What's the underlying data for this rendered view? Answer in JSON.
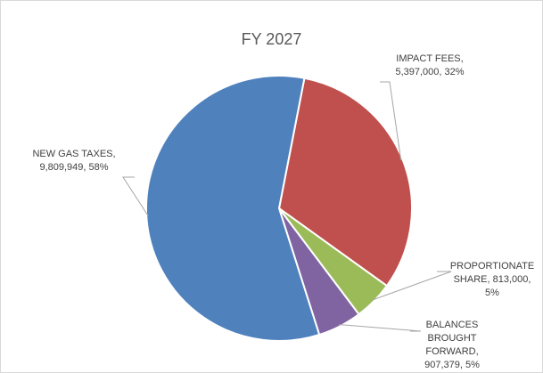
{
  "chart_data": {
    "type": "pie",
    "title": "FY 2027",
    "slices": [
      {
        "name": "IMPACT FEES",
        "value": 5397000,
        "percent": 32,
        "color": "#c0504d",
        "label_lines": [
          "IMPACT FEES,",
          "5,397,000, 32%"
        ]
      },
      {
        "name": "PROPORTIONATE SHARE",
        "value": 813000,
        "percent": 5,
        "color": "#9bbb59",
        "label_lines": [
          "PROPORTIONATE",
          "SHARE, 813,000,",
          "5%"
        ]
      },
      {
        "name": "BALANCES BROUGHT FORWARD",
        "value": 907379,
        "percent": 5,
        "color": "#8064a2",
        "label_lines": [
          "BALANCES",
          "BROUGHT",
          "FORWARD,",
          "907,379, 5%"
        ]
      },
      {
        "name": "NEW GAS TAXES",
        "value": 9809949,
        "percent": 58,
        "color": "#4f81bd",
        "label_lines": [
          "NEW GAS TAXES,",
          "9,809,949, 58%"
        ]
      }
    ],
    "legend": "none",
    "start_angle_deg": 11
  }
}
